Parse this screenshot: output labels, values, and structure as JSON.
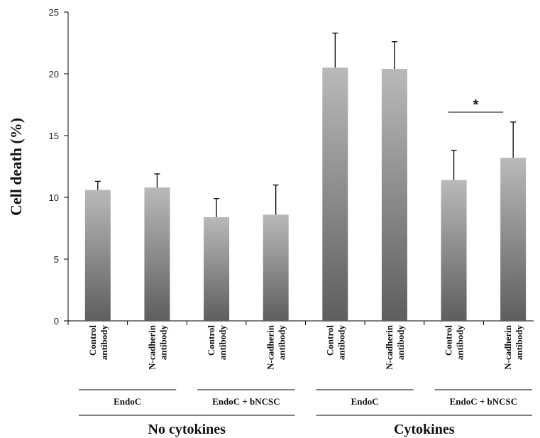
{
  "chart_data": {
    "type": "bar",
    "ylabel": "Cell death (%)",
    "ylim": [
      0,
      25
    ],
    "yticks": [
      "0",
      "5",
      "10",
      "15",
      "20",
      "25"
    ],
    "categories": [
      [
        "Control",
        "antibody"
      ],
      [
        "N-cadherin",
        "antibody"
      ],
      [
        "Control",
        "antibody"
      ],
      [
        "N-cadherin",
        "antibody"
      ],
      [
        "Control",
        "antibody"
      ],
      [
        "N-cadherin",
        "antibody"
      ],
      [
        "Control",
        "antibody"
      ],
      [
        "N-cadherin",
        "antibody"
      ]
    ],
    "values": [
      10.6,
      10.8,
      8.4,
      8.6,
      20.5,
      20.4,
      11.4,
      13.2
    ],
    "errors": [
      0.7,
      1.1,
      1.5,
      2.4,
      2.8,
      2.2,
      2.4,
      2.9
    ],
    "groups": [
      {
        "label": "EndoC",
        "span": [
          0,
          1
        ]
      },
      {
        "label": "EndoC + bNCSC",
        "span": [
          2,
          3
        ]
      },
      {
        "label": "EndoC",
        "span": [
          4,
          5
        ]
      },
      {
        "label": "EndoC + bNCSC",
        "span": [
          6,
          7
        ]
      }
    ],
    "supergroups": [
      {
        "label": "No cytokines",
        "span": [
          0,
          3
        ]
      },
      {
        "label": "Cytokines",
        "span": [
          4,
          7
        ]
      }
    ],
    "annotations": [
      {
        "text": "*",
        "between": [
          6,
          7
        ]
      }
    ],
    "colors": {
      "bar_top": "#b9b9b9",
      "bar_bottom": "#5e5e5e",
      "axis": "#000000"
    }
  }
}
